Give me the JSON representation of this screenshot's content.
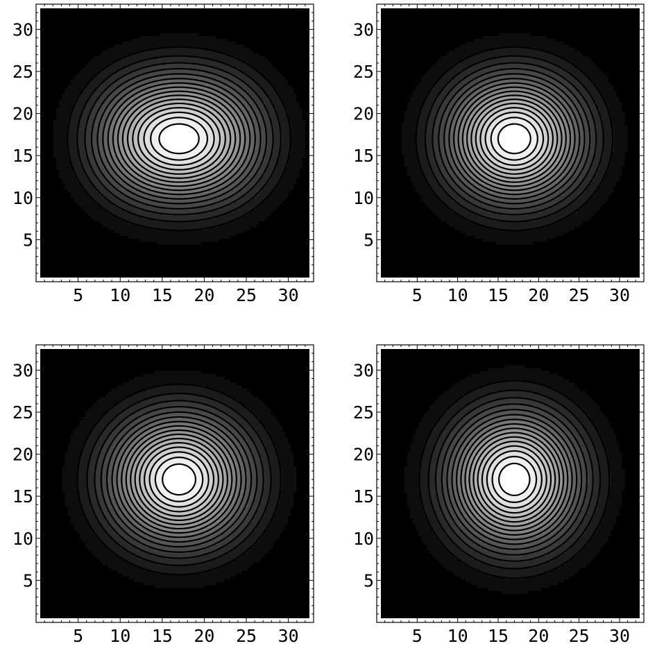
{
  "chart_data": [
    {
      "type": "contour",
      "panel": "top-left",
      "xlim": [
        0,
        33
      ],
      "ylim": [
        0,
        33
      ],
      "xticks": [
        5,
        10,
        15,
        20,
        25,
        30
      ],
      "yticks": [
        5,
        10,
        15,
        20,
        25,
        30
      ],
      "tick_labels_x": [
        "5",
        "10",
        "15",
        "20",
        "25",
        "30"
      ],
      "tick_labels_y": [
        "5",
        "10",
        "15",
        "20",
        "25",
        "30"
      ],
      "peaks": [
        {
          "x": 13.5,
          "y": 17
        },
        {
          "x": 20.5,
          "y": 17
        }
      ],
      "sigma": 5.2,
      "contour_levels": 17,
      "colormap": "grayscale"
    },
    {
      "type": "contour",
      "panel": "top-right",
      "xlim": [
        0,
        33
      ],
      "ylim": [
        0,
        33
      ],
      "xticks": [
        5,
        10,
        15,
        20,
        25,
        30
      ],
      "yticks": [
        5,
        10,
        15,
        20,
        25,
        30
      ],
      "tick_labels_x": [
        "5",
        "10",
        "15",
        "20",
        "25",
        "30"
      ],
      "tick_labels_y": [
        "5",
        "10",
        "15",
        "20",
        "25",
        "30"
      ],
      "peaks": [
        {
          "x": 14.5,
          "y": 17
        },
        {
          "x": 19.5,
          "y": 17
        }
      ],
      "sigma": 5.2,
      "contour_levels": 17,
      "colormap": "grayscale"
    },
    {
      "type": "contour",
      "panel": "bottom-left",
      "xlim": [
        0,
        33
      ],
      "ylim": [
        0,
        33
      ],
      "xticks": [
        5,
        10,
        15,
        20,
        25,
        30
      ],
      "yticks": [
        5,
        10,
        15,
        20,
        25,
        30
      ],
      "tick_labels_x": [
        "5",
        "10",
        "15",
        "20",
        "25",
        "30"
      ],
      "tick_labels_y": [
        "5",
        "10",
        "15",
        "20",
        "25",
        "30"
      ],
      "peaks": [
        {
          "x": 15,
          "y": 17
        },
        {
          "x": 19,
          "y": 17
        }
      ],
      "sigma": 5.4,
      "contour_levels": 17,
      "colormap": "grayscale"
    },
    {
      "type": "contour",
      "panel": "bottom-right",
      "xlim": [
        0,
        33
      ],
      "ylim": [
        0,
        33
      ],
      "xticks": [
        5,
        10,
        15,
        20,
        25,
        30
      ],
      "yticks": [
        5,
        10,
        15,
        20,
        25,
        30
      ],
      "tick_labels_x": [
        "5",
        "10",
        "15",
        "20",
        "25",
        "30"
      ],
      "tick_labels_y": [
        "5",
        "10",
        "15",
        "20",
        "25",
        "30"
      ],
      "peaks": [
        {
          "x": 17,
          "y": 17
        }
      ],
      "sigma": 5.6,
      "contour_levels": 17,
      "colormap": "grayscale"
    }
  ]
}
